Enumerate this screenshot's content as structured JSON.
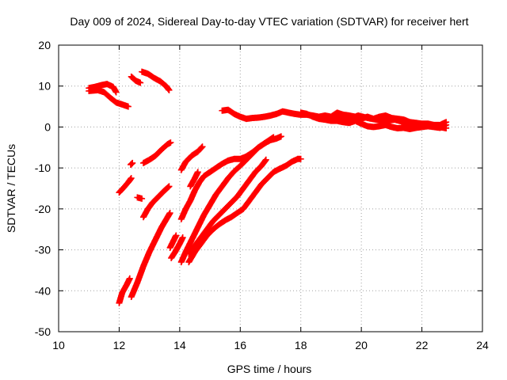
{
  "chart_data": {
    "type": "scatter",
    "title": "Day 009 of 2024, Sidereal Day-to-day VTEC variation (SDTVAR) for receiver hert",
    "xlabel": "GPS time / hours",
    "ylabel": "SDTVAR / TECUs",
    "xlim": [
      10,
      24
    ],
    "ylim": [
      -50,
      20
    ],
    "xticks": [
      "10",
      "12",
      "14",
      "16",
      "18",
      "20",
      "22",
      "24"
    ],
    "yticks": [
      "20",
      "10",
      "0",
      "-10",
      "-20",
      "-30",
      "-40",
      "-50"
    ],
    "grid": true,
    "legend": "none",
    "marker_color": "#ff0000",
    "series": [
      {
        "points": [
          [
            11.0,
            9.5
          ],
          [
            11.2,
            9.8
          ],
          [
            11.4,
            10.2
          ],
          [
            11.6,
            10.5
          ],
          [
            11.8,
            9.8
          ],
          [
            11.9,
            8.5
          ]
        ]
      },
      {
        "points": [
          [
            11.0,
            8.8
          ],
          [
            11.3,
            9.0
          ],
          [
            11.5,
            8.5
          ],
          [
            11.7,
            7.2
          ],
          [
            11.9,
            6.0
          ],
          [
            12.1,
            5.5
          ],
          [
            12.3,
            5.0
          ]
        ]
      },
      {
        "points": [
          [
            12.4,
            12.3
          ],
          [
            12.55,
            11.3
          ],
          [
            12.7,
            10.8
          ]
        ]
      },
      {
        "points": [
          [
            12.75,
            13.5
          ],
          [
            12.95,
            13.0
          ],
          [
            13.15,
            12.0
          ],
          [
            13.35,
            11.2
          ],
          [
            13.55,
            10.0
          ],
          [
            13.65,
            9.0
          ]
        ]
      },
      {
        "points": [
          [
            12.0,
            -16.0
          ],
          [
            12.15,
            -14.8
          ],
          [
            12.3,
            -13.5
          ],
          [
            12.4,
            -12.5
          ]
        ]
      },
      {
        "points": [
          [
            12.38,
            -9.2
          ],
          [
            12.44,
            -8.8
          ]
        ]
      },
      {
        "points": [
          [
            12.6,
            -17.2
          ],
          [
            12.75,
            -17.5
          ]
        ]
      },
      {
        "points": [
          [
            12.8,
            -8.8
          ],
          [
            13.0,
            -8.0
          ],
          [
            13.2,
            -7.0
          ],
          [
            13.4,
            -5.5
          ],
          [
            13.6,
            -4.2
          ],
          [
            13.7,
            -3.8
          ]
        ]
      },
      {
        "points": [
          [
            12.8,
            -22.0
          ],
          [
            12.95,
            -20.0
          ],
          [
            13.1,
            -18.5
          ],
          [
            13.3,
            -17.0
          ],
          [
            13.5,
            -15.5
          ],
          [
            13.65,
            -14.5
          ]
        ]
      },
      {
        "points": [
          [
            12.0,
            -43.0
          ],
          [
            12.1,
            -40.5
          ],
          [
            12.25,
            -38.5
          ],
          [
            12.35,
            -37.0
          ]
        ]
      },
      {
        "points": [
          [
            12.4,
            -41.5
          ],
          [
            12.6,
            -38.0
          ],
          [
            12.8,
            -34.0
          ],
          [
            13.0,
            -30.5
          ],
          [
            13.2,
            -27.5
          ],
          [
            13.4,
            -24.5
          ],
          [
            13.6,
            -22.0
          ],
          [
            13.68,
            -21.0
          ]
        ]
      },
      {
        "points": [
          [
            13.72,
            -32.0
          ],
          [
            13.85,
            -30.5
          ],
          [
            14.0,
            -28.5
          ],
          [
            14.1,
            -27.0
          ]
        ]
      },
      {
        "points": [
          [
            13.68,
            -29.5
          ],
          [
            13.78,
            -28.0
          ],
          [
            13.88,
            -26.5
          ]
        ]
      },
      {
        "points": [
          [
            14.05,
            -10.5
          ],
          [
            14.2,
            -8.5
          ],
          [
            14.4,
            -7.0
          ],
          [
            14.6,
            -6.0
          ],
          [
            14.75,
            -4.8
          ]
        ]
      },
      {
        "points": [
          [
            14.05,
            -33.0
          ],
          [
            14.2,
            -30.5
          ],
          [
            14.4,
            -27.5
          ],
          [
            14.6,
            -24.5
          ],
          [
            14.8,
            -21.5
          ],
          [
            15.0,
            -19.0
          ],
          [
            15.2,
            -16.5
          ],
          [
            15.4,
            -14.5
          ],
          [
            15.6,
            -12.5
          ],
          [
            15.8,
            -10.8
          ],
          [
            16.0,
            -9.5
          ],
          [
            16.2,
            -8.0
          ],
          [
            16.4,
            -6.5
          ],
          [
            16.6,
            -5.0
          ],
          [
            16.8,
            -4.0
          ],
          [
            17.0,
            -3.0
          ],
          [
            17.1,
            -2.5
          ]
        ]
      },
      {
        "points": [
          [
            14.05,
            -22.5
          ],
          [
            14.2,
            -20.0
          ],
          [
            14.35,
            -18.0
          ],
          [
            14.5,
            -15.5
          ],
          [
            14.65,
            -13.5
          ],
          [
            14.8,
            -12.0
          ],
          [
            15.0,
            -11.0
          ],
          [
            15.2,
            -10.0
          ],
          [
            15.4,
            -9.0
          ],
          [
            15.6,
            -8.2
          ],
          [
            15.8,
            -7.8
          ],
          [
            16.0,
            -7.8
          ],
          [
            16.2,
            -7.2
          ],
          [
            16.4,
            -6.2
          ],
          [
            16.6,
            -5.0
          ],
          [
            16.8,
            -4.0
          ],
          [
            17.0,
            -3.2
          ],
          [
            17.2,
            -2.8
          ],
          [
            17.35,
            -2.3
          ]
        ]
      },
      {
        "points": [
          [
            14.35,
            -14.5
          ],
          [
            14.5,
            -12.5
          ],
          [
            14.6,
            -11.0
          ]
        ]
      },
      {
        "points": [
          [
            14.3,
            -33.0
          ],
          [
            14.5,
            -30.5
          ],
          [
            14.7,
            -28.5
          ],
          [
            14.9,
            -26.5
          ],
          [
            15.1,
            -25.0
          ],
          [
            15.3,
            -23.8
          ],
          [
            15.5,
            -22.8
          ],
          [
            15.7,
            -22.0
          ],
          [
            15.9,
            -21.0
          ],
          [
            16.1,
            -20.0
          ],
          [
            16.3,
            -18.0
          ],
          [
            16.5,
            -16.0
          ],
          [
            16.7,
            -14.0
          ],
          [
            16.9,
            -12.5
          ],
          [
            17.1,
            -11.0
          ],
          [
            17.3,
            -10.2
          ],
          [
            17.5,
            -9.5
          ],
          [
            17.7,
            -8.5
          ],
          [
            17.9,
            -7.8
          ],
          [
            18.0,
            -7.8
          ]
        ]
      },
      {
        "points": [
          [
            14.3,
            -31.0
          ],
          [
            14.5,
            -29.0
          ],
          [
            14.7,
            -27.0
          ],
          [
            14.9,
            -25.0
          ],
          [
            15.1,
            -23.0
          ],
          [
            15.3,
            -21.5
          ],
          [
            15.5,
            -20.0
          ],
          [
            15.7,
            -18.5
          ],
          [
            15.9,
            -17.0
          ],
          [
            16.1,
            -15.0
          ],
          [
            16.3,
            -13.0
          ],
          [
            16.5,
            -11.0
          ],
          [
            16.7,
            -9.5
          ],
          [
            16.85,
            -8.0
          ]
        ]
      },
      {
        "points": [
          [
            15.4,
            4.0
          ],
          [
            15.6,
            4.2
          ],
          [
            15.8,
            3.2
          ],
          [
            16.0,
            2.5
          ],
          [
            16.2,
            2.0
          ],
          [
            16.4,
            2.2
          ],
          [
            16.6,
            2.3
          ],
          [
            16.8,
            2.5
          ],
          [
            17.0,
            2.8
          ],
          [
            17.2,
            3.2
          ],
          [
            17.4,
            3.8
          ],
          [
            17.6,
            3.5
          ],
          [
            17.8,
            3.2
          ],
          [
            18.0,
            3.0
          ],
          [
            18.2,
            3.0
          ],
          [
            18.4,
            2.8
          ],
          [
            18.6,
            2.5
          ],
          [
            18.8,
            2.8
          ],
          [
            19.0,
            2.5
          ],
          [
            19.2,
            3.5
          ],
          [
            19.4,
            3.0
          ],
          [
            19.6,
            2.8
          ],
          [
            19.8,
            2.5
          ],
          [
            20.0,
            2.0
          ],
          [
            20.2,
            2.5
          ],
          [
            20.4,
            2.0
          ],
          [
            20.6,
            2.5
          ],
          [
            20.8,
            2.8
          ],
          [
            21.0,
            2.2
          ],
          [
            21.2,
            2.0
          ],
          [
            21.4,
            1.8
          ],
          [
            21.6,
            1.2
          ],
          [
            21.8,
            1.0
          ],
          [
            22.0,
            0.8
          ],
          [
            22.2,
            0.8
          ],
          [
            22.4,
            0.5
          ],
          [
            22.6,
            0.5
          ],
          [
            22.8,
            1.2
          ]
        ]
      },
      {
        "points": [
          [
            18.0,
            3.5
          ],
          [
            18.2,
            3.2
          ],
          [
            18.4,
            2.5
          ],
          [
            18.6,
            2.0
          ],
          [
            18.8,
            1.8
          ],
          [
            19.0,
            1.5
          ],
          [
            19.2,
            1.5
          ],
          [
            19.4,
            1.2
          ],
          [
            19.6,
            1.0
          ],
          [
            19.8,
            1.5
          ],
          [
            20.0,
            0.8
          ],
          [
            20.2,
            0.2
          ],
          [
            20.4,
            0.0
          ],
          [
            20.6,
            0.2
          ],
          [
            20.8,
            0.5
          ],
          [
            21.0,
            0.0
          ],
          [
            21.2,
            -0.3
          ],
          [
            21.4,
            -0.2
          ],
          [
            21.6,
            -0.5
          ],
          [
            21.8,
            -0.2
          ],
          [
            22.0,
            0.0
          ],
          [
            22.2,
            0.2
          ],
          [
            22.4,
            0.0
          ],
          [
            22.6,
            -0.2
          ],
          [
            22.8,
            0.5
          ]
        ]
      },
      {
        "points": [
          [
            19.0,
            2.0
          ],
          [
            19.3,
            2.5
          ],
          [
            19.6,
            2.0
          ],
          [
            19.9,
            2.8
          ],
          [
            20.2,
            2.2
          ],
          [
            20.5,
            1.8
          ],
          [
            20.8,
            1.5
          ],
          [
            21.1,
            1.8
          ],
          [
            21.4,
            1.2
          ],
          [
            21.7,
            0.8
          ],
          [
            22.0,
            0.5
          ],
          [
            22.3,
            0.2
          ],
          [
            22.6,
            0.0
          ],
          [
            22.8,
            -0.3
          ]
        ]
      }
    ]
  }
}
